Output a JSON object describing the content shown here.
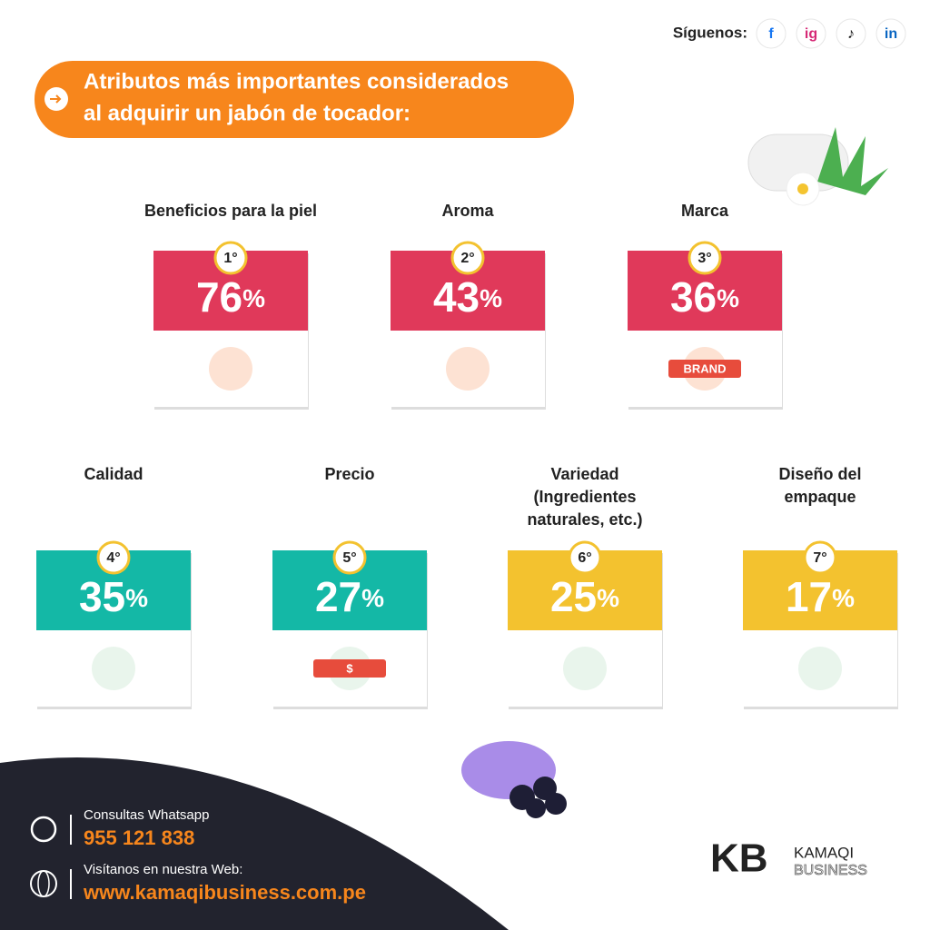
{
  "header": {
    "follow": "Síguenos:",
    "social": [
      "f",
      "ig",
      "♪",
      "in"
    ],
    "title_lines": [
      "Atributos más importantes considerados",
      "al adquirir un jabón de tocador:"
    ]
  },
  "cards": [
    {
      "label_lines": [
        "Beneficios para la piel"
      ],
      "rank": "1°",
      "value": "76",
      "unit": "%",
      "color": "#e0395a"
    },
    {
      "label_lines": [
        "Aroma"
      ],
      "rank": "2°",
      "value": "43",
      "unit": "%",
      "color": "#e0395a"
    },
    {
      "label_lines": [
        "Marca"
      ],
      "rank": "3°",
      "value": "36",
      "unit": "%",
      "color": "#e0395a",
      "icon_text": "BRAND"
    },
    {
      "label_lines": [
        "Calidad"
      ],
      "rank": "4°",
      "value": "35",
      "unit": "%",
      "color": "#14b8a6"
    },
    {
      "label_lines": [
        "Precio"
      ],
      "rank": "5°",
      "value": "27",
      "unit": "%",
      "color": "#14b8a6",
      "icon_text": "$"
    },
    {
      "label_lines": [
        "Variedad",
        "(Ingredientes",
        "naturales, etc.)"
      ],
      "rank": "6°",
      "value": "25",
      "unit": "%",
      "color": "#f3c22f"
    },
    {
      "label_lines": [
        "Diseño del",
        "empaque"
      ],
      "rank": "7°",
      "value": "17",
      "unit": "%",
      "color": "#f3c22f"
    }
  ],
  "footer": {
    "whatsapp_label": "Consultas Whatsapp",
    "whatsapp_number": "955 121 838",
    "web_label": "Visítanos en nuestra Web:",
    "web_url": "www.kamaqibusiness.com.pe",
    "brand_initials": "KB",
    "brand_name": "KAMAQI",
    "brand_sub": "BUSINESS"
  }
}
